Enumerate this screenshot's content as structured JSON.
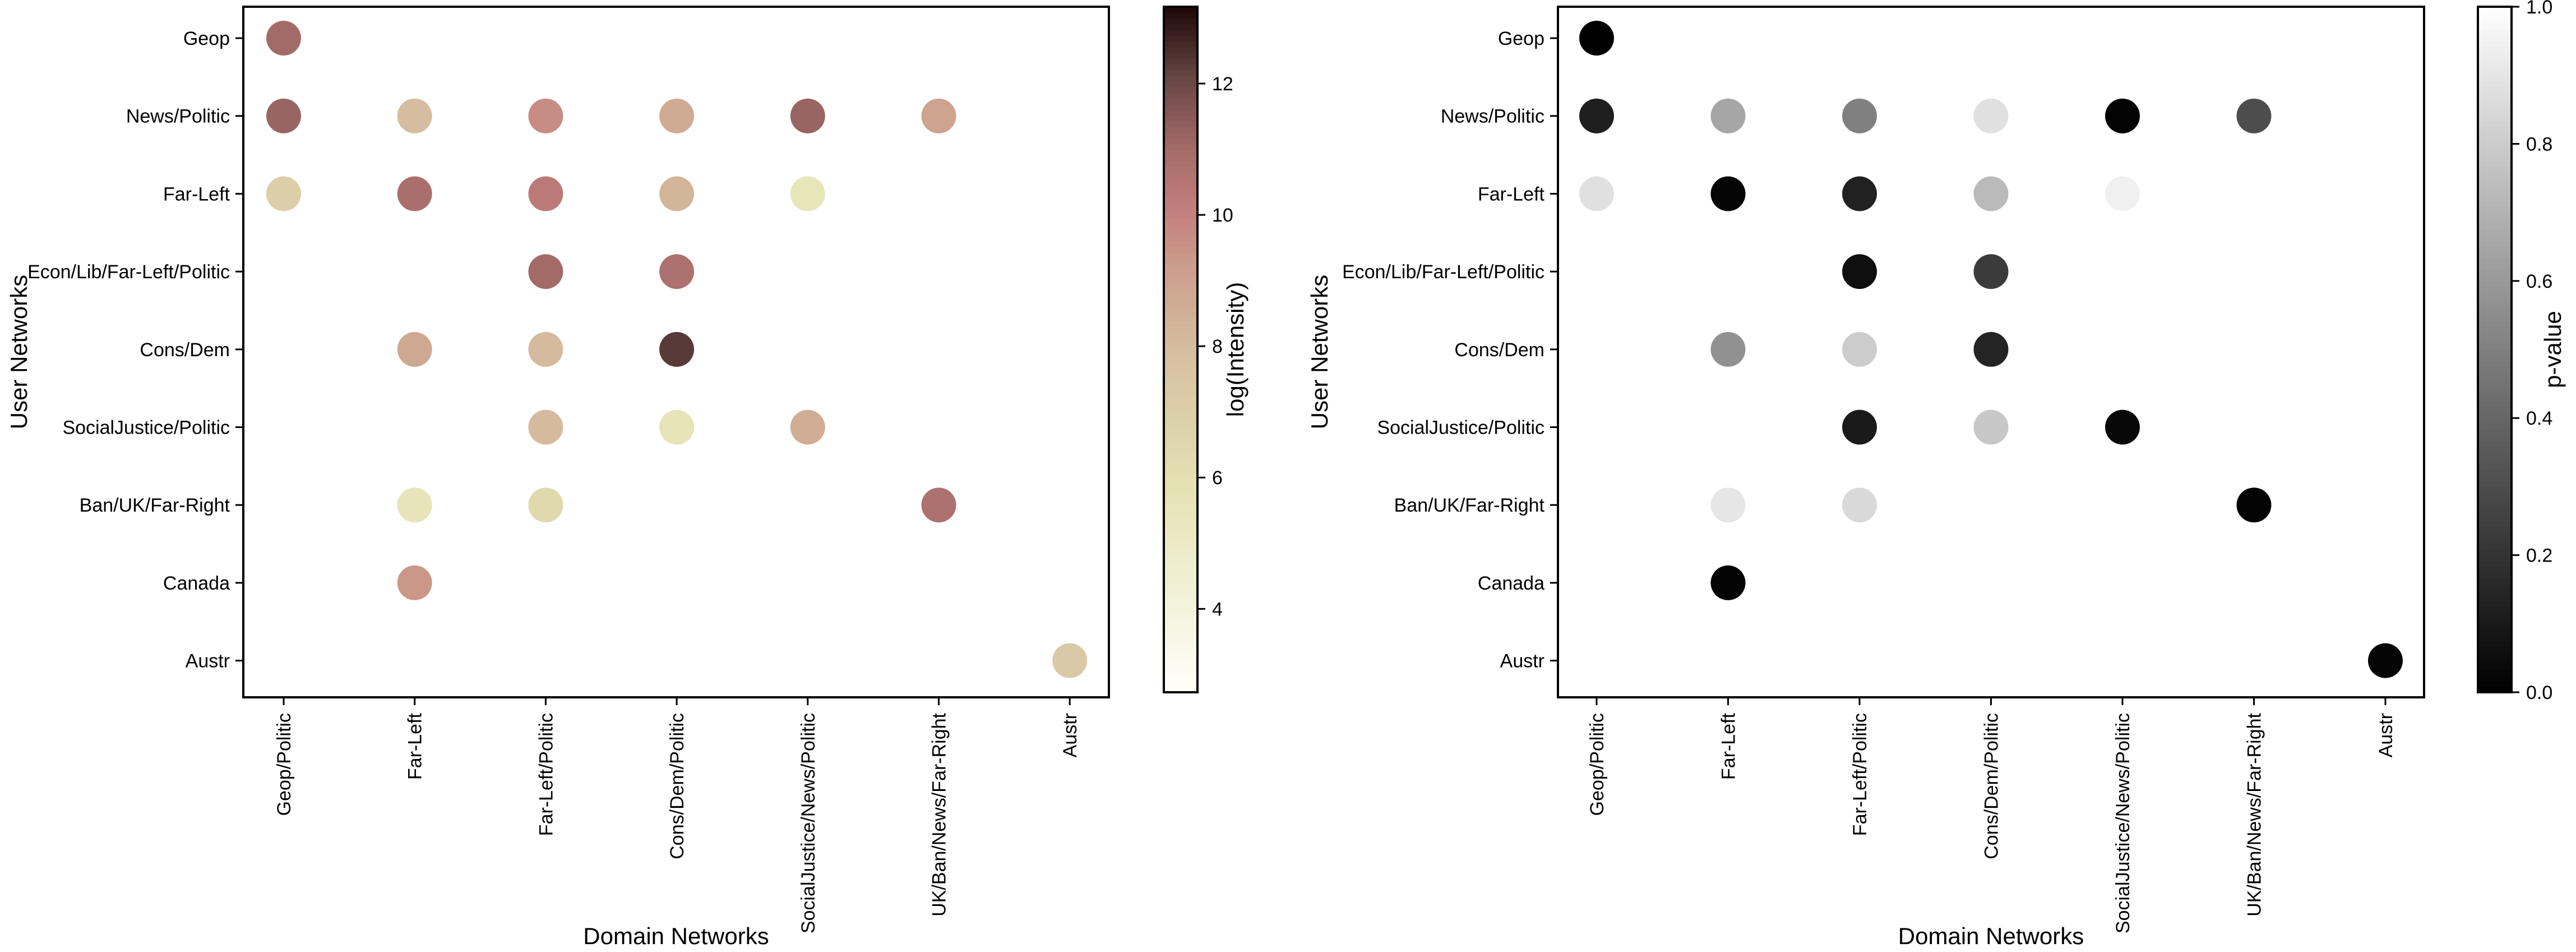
{
  "chart_data": [
    {
      "type": "scatter",
      "xlabel": "Domain Networks",
      "ylabel": "User Networks",
      "x_categories": [
        "Geop/Politic",
        "Far-Left",
        "Far-Left/Politic",
        "Cons/Dem/Politic",
        "SocialJustice/News/Politic",
        "UK/Ban/News/Far-Right",
        "Austr"
      ],
      "y_categories": [
        "Geop",
        "News/Politic",
        "Far-Left",
        "Econ/Lib/Far-Left/Politic",
        "Cons/Dem",
        "SocialJustice/Politic",
        "Ban/UK/Far-Right",
        "Canada",
        "Austr"
      ],
      "colorbar": {
        "label": "log(Intensity)",
        "colormap": "pink_r",
        "range": [
          2.73,
          13.17
        ],
        "ticks": [
          4,
          6,
          8,
          10,
          12
        ]
      },
      "points": [
        {
          "x": "Geop/Politic",
          "y": "Geop",
          "value": 11.0
        },
        {
          "x": "Geop/Politic",
          "y": "News/Politic",
          "value": 11.2
        },
        {
          "x": "Far-Left",
          "y": "News/Politic",
          "value": 8.0
        },
        {
          "x": "Far-Left/Politic",
          "y": "News/Politic",
          "value": 9.7
        },
        {
          "x": "Cons/Dem/Politic",
          "y": "News/Politic",
          "value": 8.7
        },
        {
          "x": "SocialJustice/News/Politic",
          "y": "News/Politic",
          "value": 11.2
        },
        {
          "x": "UK/Ban/News/Far-Right",
          "y": "News/Politic",
          "value": 9.0
        },
        {
          "x": "Geop/Politic",
          "y": "Far-Left",
          "value": 7.0
        },
        {
          "x": "Far-Left",
          "y": "Far-Left",
          "value": 10.8
        },
        {
          "x": "Far-Left/Politic",
          "y": "Far-Left",
          "value": 10.3
        },
        {
          "x": "Cons/Dem/Politic",
          "y": "Far-Left",
          "value": 8.3
        },
        {
          "x": "SocialJustice/News/Politic",
          "y": "Far-Left",
          "value": 5.5
        },
        {
          "x": "Far-Left/Politic",
          "y": "Econ/Lib/Far-Left/Politic",
          "value": 11.0
        },
        {
          "x": "Cons/Dem/Politic",
          "y": "Econ/Lib/Far-Left/Politic",
          "value": 10.7
        },
        {
          "x": "Far-Left",
          "y": "Cons/Dem",
          "value": 8.8
        },
        {
          "x": "Far-Left/Politic",
          "y": "Cons/Dem",
          "value": 8.1
        },
        {
          "x": "Cons/Dem/Politic",
          "y": "Cons/Dem",
          "value": 12.3
        },
        {
          "x": "Far-Left/Politic",
          "y": "SocialJustice/Politic",
          "value": 8.1
        },
        {
          "x": "Cons/Dem/Politic",
          "y": "SocialJustice/Politic",
          "value": 5.6
        },
        {
          "x": "SocialJustice/News/Politic",
          "y": "SocialJustice/Politic",
          "value": 8.6
        },
        {
          "x": "Far-Left",
          "y": "Ban/UK/Far-Right",
          "value": 5.6
        },
        {
          "x": "Far-Left/Politic",
          "y": "Ban/UK/Far-Right",
          "value": 6.4
        },
        {
          "x": "UK/Ban/News/Far-Right",
          "y": "Ban/UK/Far-Right",
          "value": 10.7
        },
        {
          "x": "Far-Left",
          "y": "Canada",
          "value": 9.4
        },
        {
          "x": "Austr",
          "y": "Austr",
          "value": 7.3
        }
      ]
    },
    {
      "type": "scatter",
      "xlabel": "Domain Networks",
      "ylabel": "User Networks",
      "x_categories": [
        "Geop/Politic",
        "Far-Left",
        "Far-Left/Politic",
        "Cons/Dem/Politic",
        "SocialJustice/News/Politic",
        "UK/Ban/News/Far-Right",
        "Austr"
      ],
      "y_categories": [
        "Geop",
        "News/Politic",
        "Far-Left",
        "Econ/Lib/Far-Left/Politic",
        "Cons/Dem",
        "SocialJustice/Politic",
        "Ban/UK/Far-Right",
        "Canada",
        "Austr"
      ],
      "colorbar": {
        "label": "p-value",
        "colormap": "gray",
        "range": [
          0.0,
          1.0
        ],
        "ticks": [
          "0.0",
          "0.2",
          "0.4",
          "0.6",
          "0.8",
          "1.0"
        ]
      },
      "points": [
        {
          "x": "Geop/Politic",
          "y": "Geop",
          "value": 0.0
        },
        {
          "x": "Geop/Politic",
          "y": "News/Politic",
          "value": 0.12
        },
        {
          "x": "Far-Left",
          "y": "News/Politic",
          "value": 0.65
        },
        {
          "x": "Far-Left/Politic",
          "y": "News/Politic",
          "value": 0.5
        },
        {
          "x": "Cons/Dem/Politic",
          "y": "News/Politic",
          "value": 0.88
        },
        {
          "x": "SocialJustice/News/Politic",
          "y": "News/Politic",
          "value": 0.01
        },
        {
          "x": "UK/Ban/News/Far-Right",
          "y": "News/Politic",
          "value": 0.3
        },
        {
          "x": "Geop/Politic",
          "y": "Far-Left",
          "value": 0.88
        },
        {
          "x": "Far-Left",
          "y": "Far-Left",
          "value": 0.02
        },
        {
          "x": "Far-Left/Politic",
          "y": "Far-Left",
          "value": 0.13
        },
        {
          "x": "Cons/Dem/Politic",
          "y": "Far-Left",
          "value": 0.73
        },
        {
          "x": "SocialJustice/News/Politic",
          "y": "Far-Left",
          "value": 0.94
        },
        {
          "x": "Far-Left/Politic",
          "y": "Econ/Lib/Far-Left/Politic",
          "value": 0.06
        },
        {
          "x": "Cons/Dem/Politic",
          "y": "Econ/Lib/Far-Left/Politic",
          "value": 0.23
        },
        {
          "x": "Far-Left",
          "y": "Cons/Dem",
          "value": 0.57
        },
        {
          "x": "Far-Left/Politic",
          "y": "Cons/Dem",
          "value": 0.8
        },
        {
          "x": "Cons/Dem/Politic",
          "y": "Cons/Dem",
          "value": 0.14
        },
        {
          "x": "Far-Left/Politic",
          "y": "SocialJustice/Politic",
          "value": 0.1
        },
        {
          "x": "Cons/Dem/Politic",
          "y": "SocialJustice/Politic",
          "value": 0.78
        },
        {
          "x": "SocialJustice/News/Politic",
          "y": "SocialJustice/Politic",
          "value": 0.03
        },
        {
          "x": "Far-Left",
          "y": "Ban/UK/Far-Right",
          "value": 0.9
        },
        {
          "x": "Far-Left/Politic",
          "y": "Ban/UK/Far-Right",
          "value": 0.85
        },
        {
          "x": "UK/Ban/News/Far-Right",
          "y": "Ban/UK/Far-Right",
          "value": 0.01
        },
        {
          "x": "Far-Left",
          "y": "Canada",
          "value": 0.01
        },
        {
          "x": "Austr",
          "y": "Austr",
          "value": 0.02
        }
      ]
    }
  ]
}
